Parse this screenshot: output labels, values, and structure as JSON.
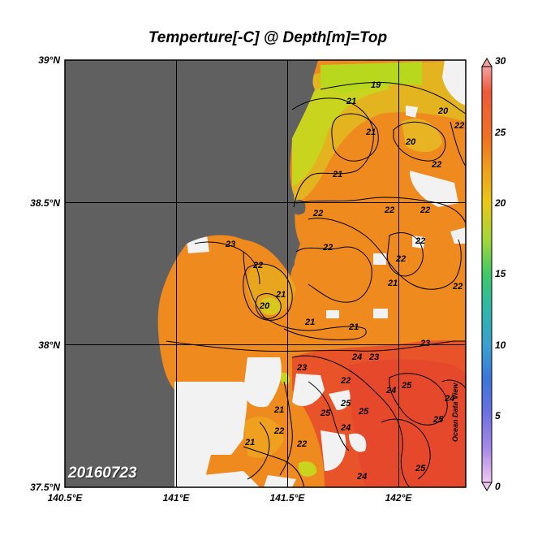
{
  "title": "Temperture[-C] @ Depth[m]=Top",
  "date_label": "20160723",
  "watermark": "Ocean Data View",
  "axes": {
    "lat_ticks": [
      "39°N",
      "38.5°N",
      "38°N",
      "37.5°N"
    ],
    "lon_ticks": [
      "140.5°E",
      "141°E",
      "141.5°E",
      "142°E"
    ]
  },
  "colorbar": {
    "ticks": [
      "30",
      "25",
      "20",
      "15",
      "10",
      "5",
      "0"
    ],
    "min": 0,
    "max": 30,
    "colors": {
      "top": "#f4a0a0",
      "red": "#e8452a",
      "orange": "#f08a1c",
      "yellow": "#e8c81a",
      "green": "#7ed63a",
      "teal": "#2fb8a8",
      "blue": "#3a78d8",
      "purple": "#8a78e0",
      "bottom": "#f0c8f0"
    }
  },
  "map_colors": {
    "land": "#606060",
    "no_data": "#f2f2f2",
    "warm_sea": "#ef8a1e",
    "hot_sea": "#e8532a",
    "cool_sea": "#e4b420",
    "coolest_sea": "#c8d41e"
  },
  "contour_labels": [
    "19",
    "21",
    "21",
    "21",
    "20",
    "20",
    "22",
    "22",
    "22",
    "22",
    "22",
    "22",
    "22",
    "22",
    "22",
    "23",
    "22",
    "21",
    "21",
    "21",
    "20",
    "21",
    "22",
    "24",
    "23",
    "23",
    "23",
    "24",
    "25",
    "25",
    "25",
    "24",
    "25",
    "25",
    "21",
    "21",
    "22",
    "22",
    "24",
    "24",
    "25"
  ]
}
